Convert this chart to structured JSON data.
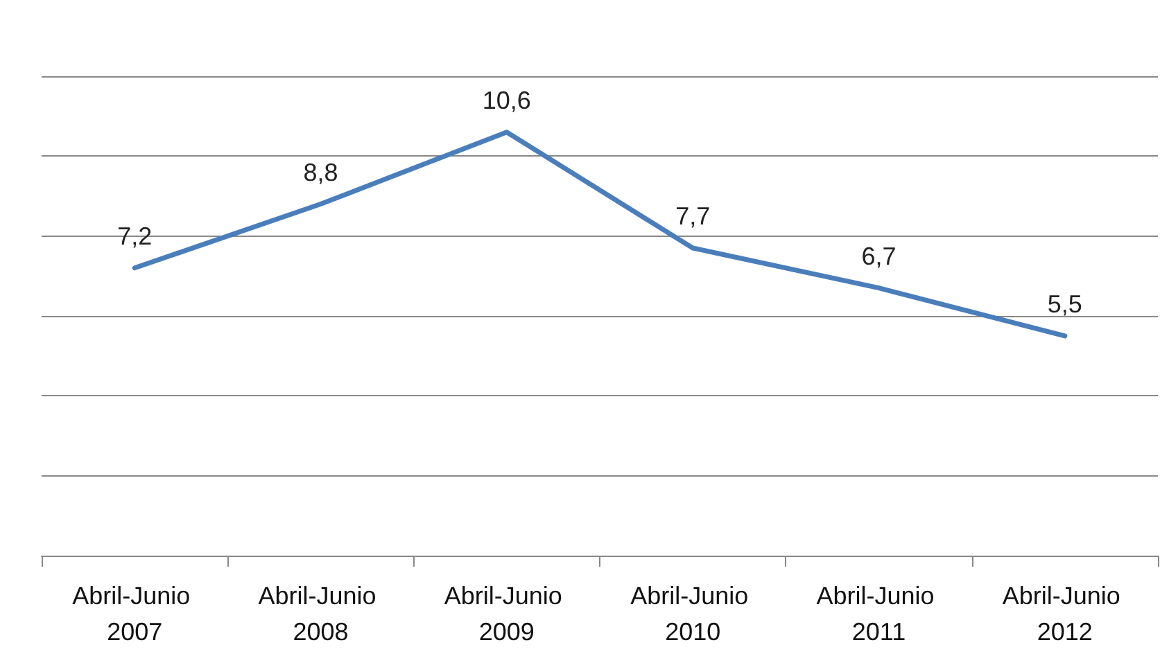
{
  "chart_data": {
    "type": "line",
    "categories": [
      "Abril-Junio 2007",
      "Abril-Junio 2008",
      "Abril-Junio 2009",
      "Abril-Junio 2010",
      "Abril-Junio 2011",
      "Abril-Junio 2012"
    ],
    "series": [
      {
        "color": "#4a7ebb",
        "values": [
          7.2,
          8.8,
          10.6,
          7.7,
          6.7,
          5.5
        ],
        "value_labels": [
          "7,2",
          "8,8",
          "10,6",
          "7,7",
          "6,7",
          "5,5"
        ]
      }
    ],
    "tick_labels": "x",
    "grid": "y",
    "marker": "none",
    "line_style": "solid"
  }
}
